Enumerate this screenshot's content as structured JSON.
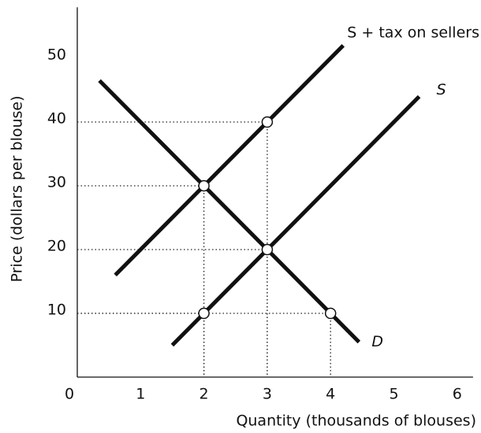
{
  "chart_data": {
    "type": "line",
    "x_label": "Quantity (thousands of blouses)",
    "y_label": "Price (dollars per blouse)",
    "xlim": [
      0,
      6.25
    ],
    "ylim": [
      0,
      58
    ],
    "xticks": [
      0,
      1,
      2,
      3,
      4,
      5,
      6
    ],
    "yticks": [
      10,
      20,
      30,
      40,
      50
    ],
    "series": [
      {
        "name": "S + tax on sellers",
        "color": "#111111",
        "x": [
          0.6,
          4.2
        ],
        "values": [
          16,
          52
        ]
      },
      {
        "name": "S",
        "color": "#111111",
        "x": [
          1.5,
          5.4
        ],
        "values": [
          5,
          44
        ]
      },
      {
        "name": "D",
        "color": "#111111",
        "x": [
          0.35,
          4.45
        ],
        "values": [
          46.5,
          5.5
        ]
      }
    ],
    "points": {
      "x": [
        2,
        3,
        3,
        2,
        4
      ],
      "values": [
        30,
        40,
        20,
        10,
        10
      ]
    }
  }
}
